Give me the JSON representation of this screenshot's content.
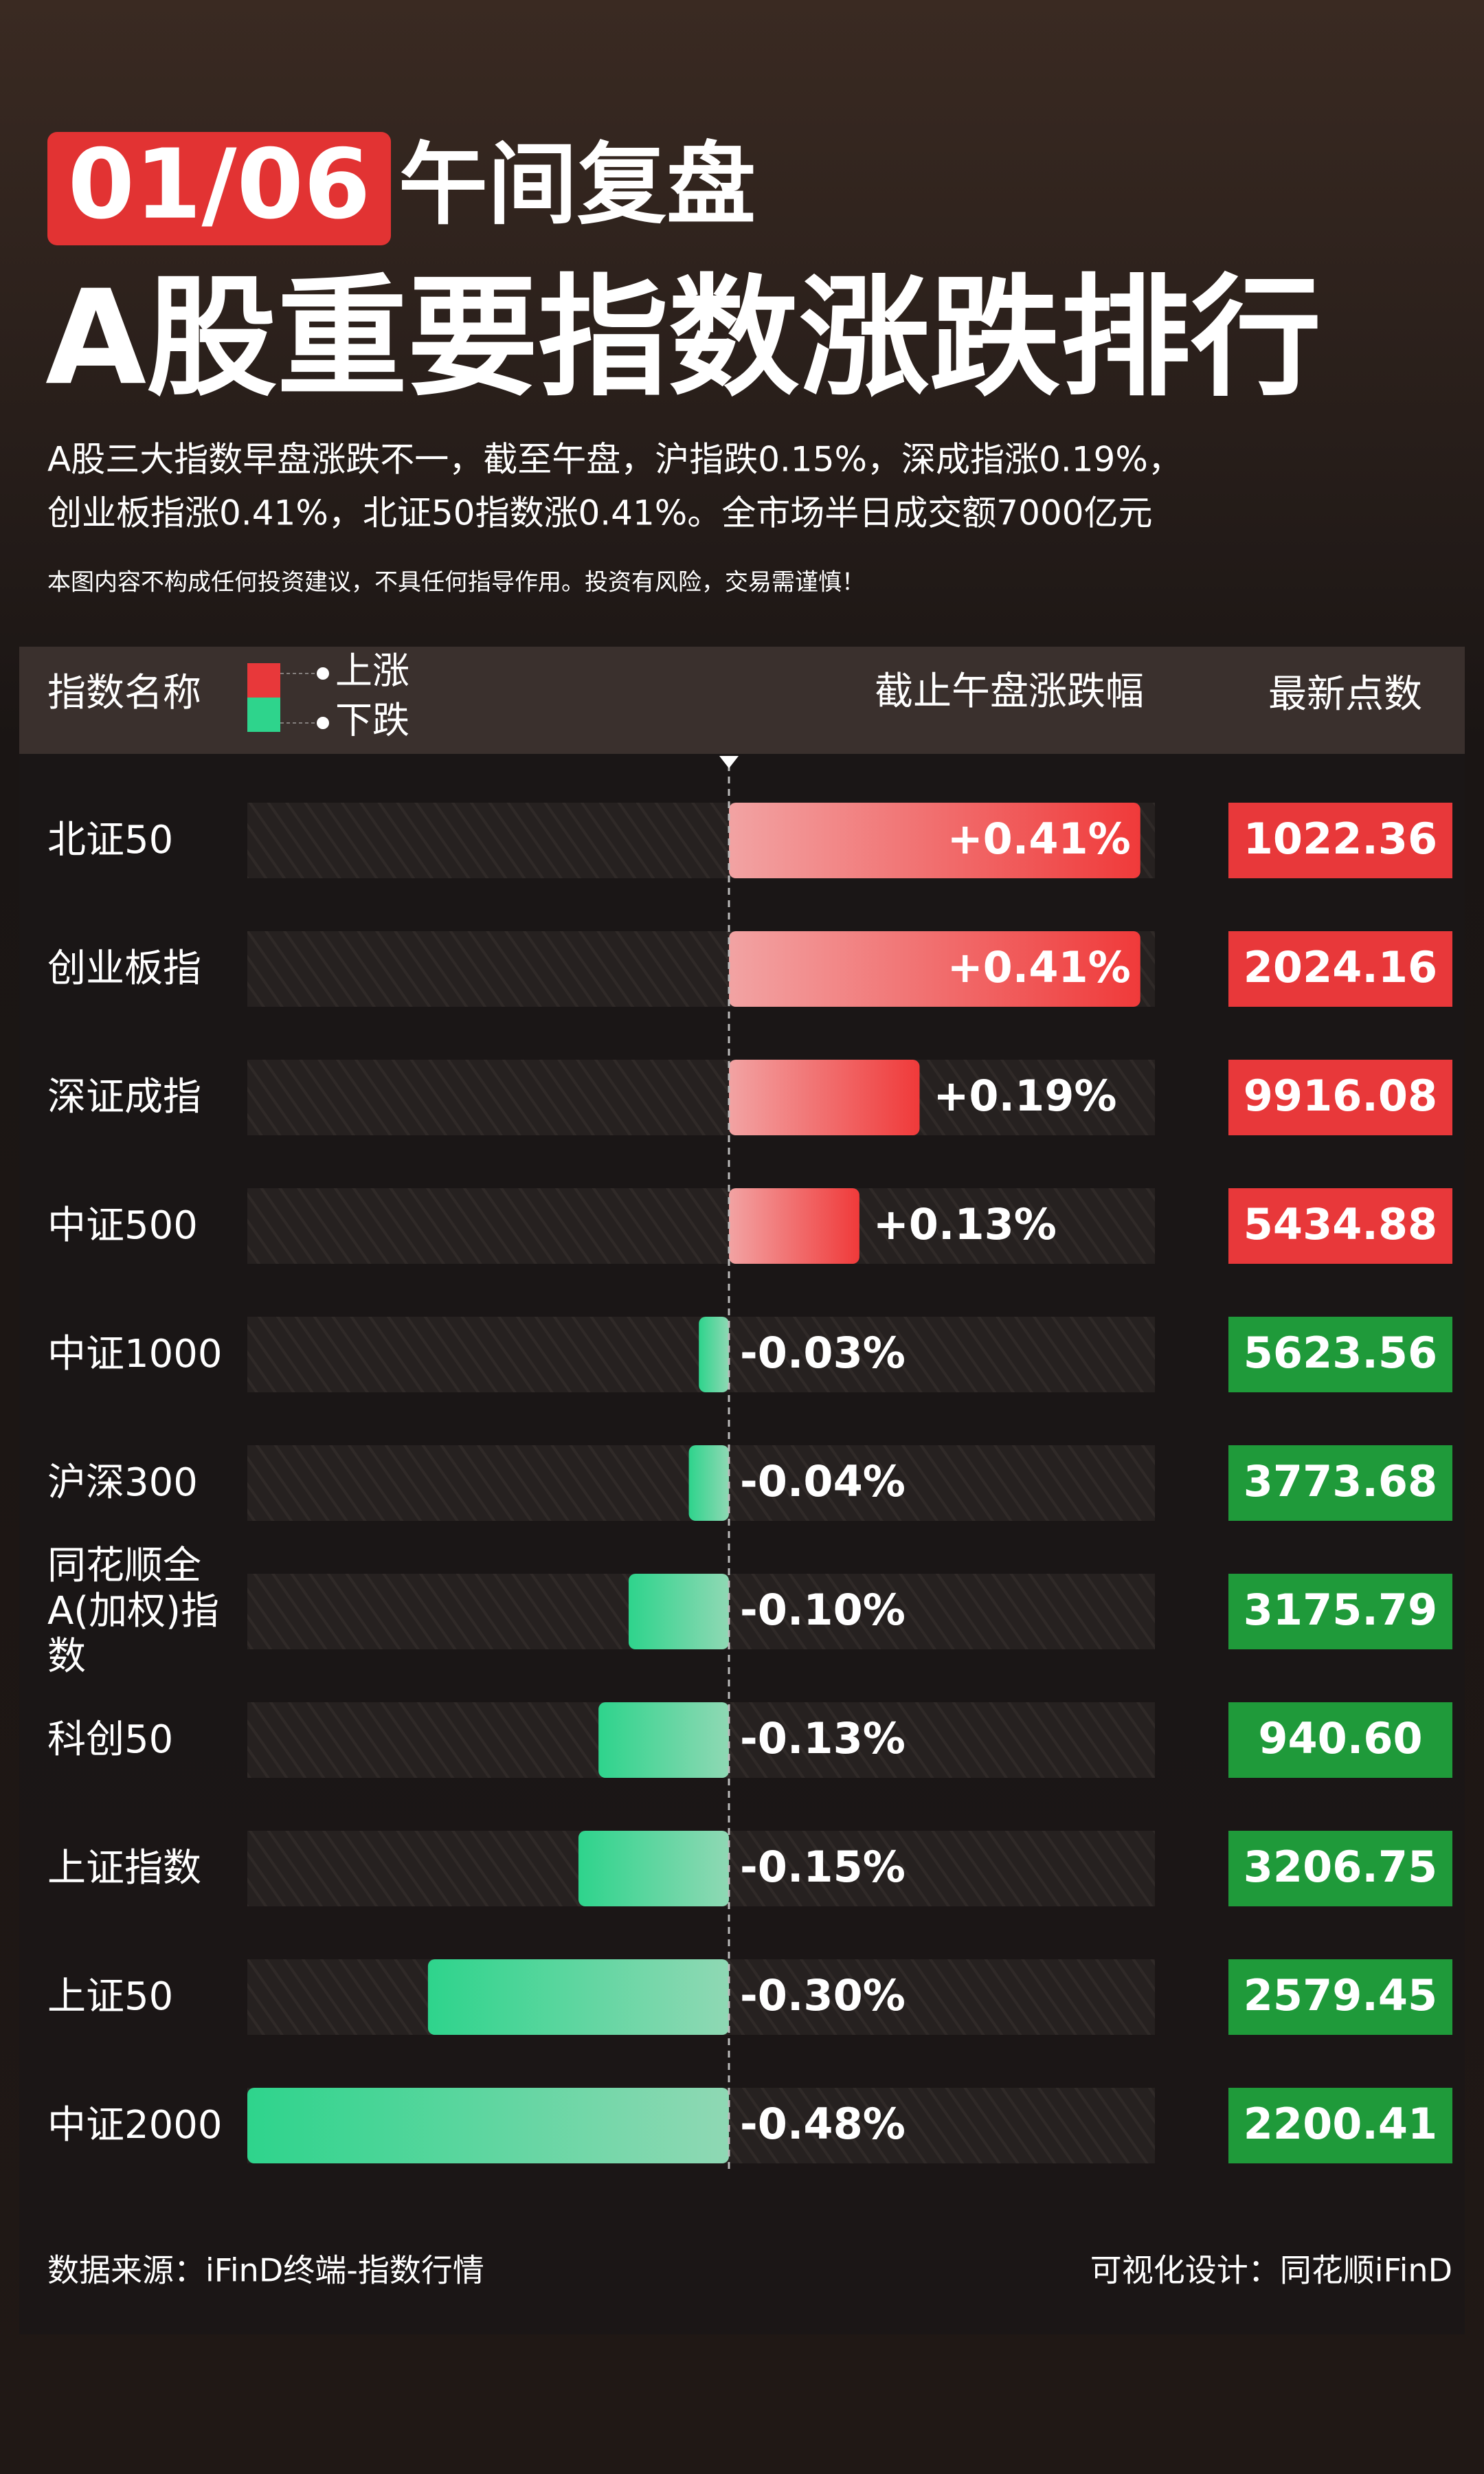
{
  "header": {
    "date": "01/06",
    "title_suffix": "午间复盘",
    "title": "A股重要指数涨跌排行",
    "summary": [
      "A股三大指数早盘涨跌不一，截至午盘，沪指跌0.15%，深成指涨0.19%，",
      "创业板指涨0.41%，北证50指数涨0.41%。全市场半日成交额7000亿元"
    ],
    "disclaimer": "本图内容不构成任何投资建议，不具任何指导作用。投资有风险，交易需谨慎！"
  },
  "table_header": {
    "name": "指数名称",
    "legend": [
      "上涨",
      "下跌"
    ],
    "change": "截止午盘涨跌幅",
    "latest": "最新点数"
  },
  "chart_data": {
    "type": "bar",
    "orientation": "horizontal",
    "categories": [
      "北证50",
      "创业板指",
      "深证成指",
      "中证500",
      "中证1000",
      "沪深300",
      "同花顺全A(加权)指数",
      "科创50",
      "上证指数",
      "上证50",
      "中证2000"
    ],
    "values": [
      0.41,
      0.41,
      0.19,
      0.13,
      -0.03,
      -0.04,
      -0.1,
      -0.13,
      -0.15,
      -0.3,
      -0.48
    ],
    "value_labels": [
      "+0.41%",
      "+0.41%",
      "+0.19%",
      "+0.13%",
      "-0.03%",
      "-0.04%",
      "-0.10%",
      "-0.13%",
      "-0.15%",
      "-0.30%",
      "-0.48%"
    ],
    "latest_points": [
      "1022.36",
      "2024.16",
      "9916.08",
      "5434.88",
      "5623.56",
      "3773.68",
      "3175.79",
      "940.60",
      "3206.75",
      "2579.45",
      "2200.41"
    ],
    "colors": {
      "up": "#f04646",
      "down": "#2ed48c",
      "box_up": "#e8383a",
      "box_down": "#1f9a3a"
    }
  },
  "footer": {
    "source": "数据来源：iFinD终端-指数行情",
    "design": "可视化设计：同花顺iFinD"
  }
}
